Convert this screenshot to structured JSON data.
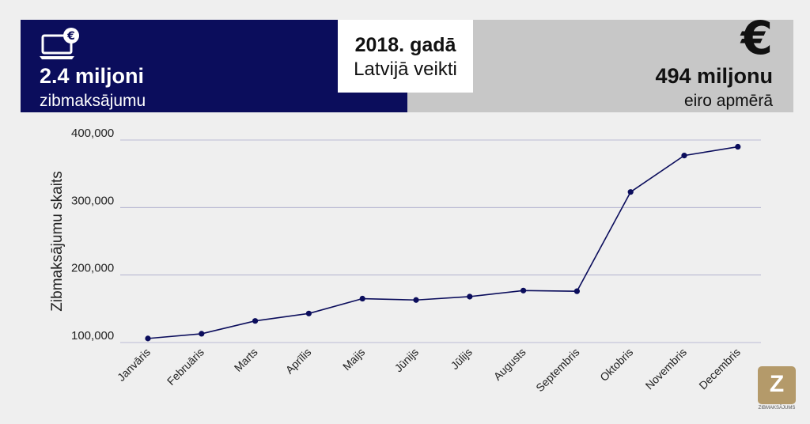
{
  "banner": {
    "left_stat": "2.4 miljoni",
    "left_sub": "zibmaksājumu",
    "center_year": "2018. gadā",
    "center_sub": "Latvijā veikti",
    "right_stat": "494 miljonu",
    "right_sub": "eiro apmērā",
    "euro_symbol": "€",
    "left_icon": "laptop-euro-icon"
  },
  "colors": {
    "navy": "#0b0d5c",
    "grey_panel": "#c7c7c7",
    "gold_logo": "#b49a6a"
  },
  "chart_data": {
    "type": "line",
    "title": "",
    "xlabel": "",
    "ylabel": "Zibmaksājumu skaits",
    "ylim": [
      100000,
      400000
    ],
    "yticks": [
      100000,
      200000,
      300000,
      400000
    ],
    "ytick_labels": [
      "100,000",
      "200,000",
      "300,000",
      "400,000"
    ],
    "grid": "horizontal",
    "categories": [
      "Janvāris",
      "Februāris",
      "Marts",
      "Aprīlis",
      "Maijs",
      "Jūnijs",
      "Jūlijs",
      "Augusts",
      "Septembris",
      "Oktobris",
      "Novembris",
      "Decembris"
    ],
    "series": [
      {
        "values": [
          106000,
          113000,
          132000,
          143000,
          165000,
          163000,
          168000,
          177000,
          176000,
          323000,
          377000,
          390000
        ]
      }
    ]
  },
  "logo": {
    "letter": "Z",
    "caption": "ZIBMAKSĀJUMS"
  }
}
